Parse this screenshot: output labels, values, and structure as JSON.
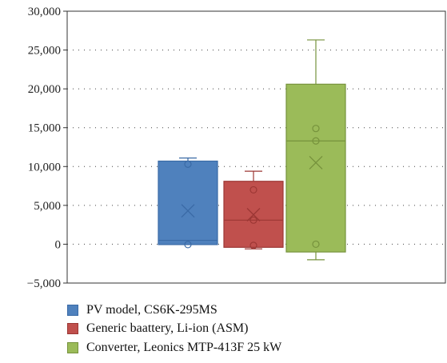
{
  "chart_data": {
    "type": "box",
    "title": "",
    "xlabel": "",
    "ylabel": "",
    "ylim": [
      -5000,
      30000
    ],
    "yticks": [
      -5000,
      0,
      5000,
      10000,
      15000,
      20000,
      25000,
      30000
    ],
    "ytick_labels": [
      "−5,000",
      "0",
      "5,000",
      "10,000",
      "15,000",
      "20,000",
      "25,000",
      "30,000"
    ],
    "grid": "horizontal dotted",
    "legend_position": "bottom",
    "series": [
      {
        "name": "PV model, CS6K-295MS",
        "color": "#4f81bd",
        "edge": "#3a6aa6",
        "min": -50,
        "q1": -50,
        "median": 500,
        "q3": 10700,
        "max": 11100,
        "mean": 4300,
        "points": [
          10300,
          -50
        ]
      },
      {
        "name": "Generic baattery, Li-ion (ASM)",
        "color": "#c0504d",
        "edge": "#9c3734",
        "min": -600,
        "q1": -400,
        "median": 3100,
        "q3": 8100,
        "max": 9400,
        "mean": 3800,
        "points": [
          7000,
          3100,
          -150
        ]
      },
      {
        "name": "Converter, Leonics MTP-413F 25 kW",
        "color": "#9bbb59",
        "edge": "#76923c",
        "min": -2000,
        "q1": -1000,
        "median": 13300,
        "q3": 20600,
        "max": 26300,
        "mean": 10500,
        "points": [
          14900,
          13300,
          0
        ]
      }
    ]
  }
}
